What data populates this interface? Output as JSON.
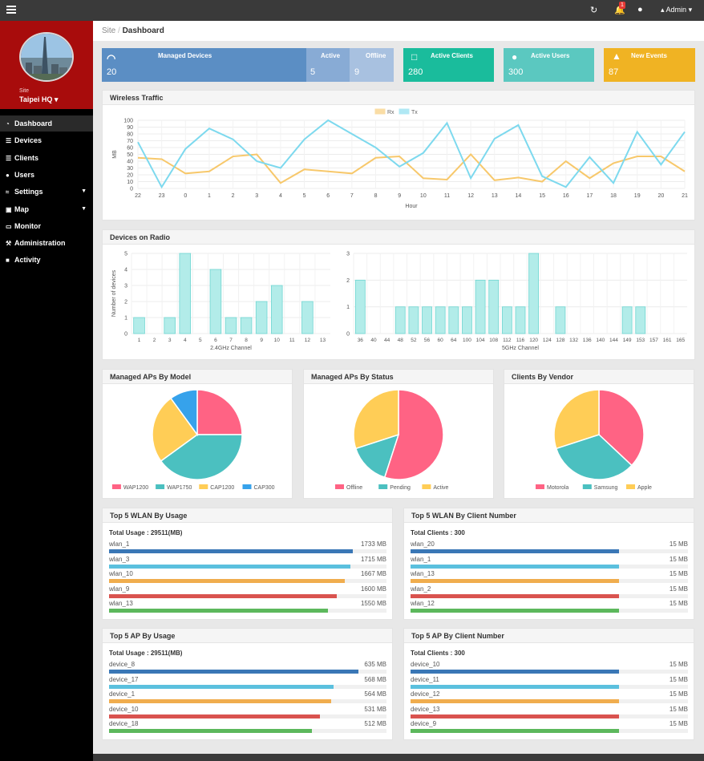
{
  "topbar": {
    "bell_badge": "1",
    "admin_label": "Admin"
  },
  "site": {
    "label": "Site",
    "name": "Taipei HQ"
  },
  "nav": [
    {
      "label": "Dashboard",
      "icon": "dashboard-icon"
    },
    {
      "label": "Devices",
      "icon": "devices-icon"
    },
    {
      "label": "Clients",
      "icon": "clients-icon"
    },
    {
      "label": "Users",
      "icon": "users-icon"
    },
    {
      "label": "Settings",
      "icon": "settings-icon"
    },
    {
      "label": "Map",
      "icon": "map-icon"
    },
    {
      "label": "Monitor",
      "icon": "monitor-icon"
    },
    {
      "label": "Administration",
      "icon": "wrench-icon"
    },
    {
      "label": "Activity",
      "icon": "file-icon"
    }
  ],
  "breadcrumb": {
    "root": "Site",
    "sep": "/",
    "current": "Dashboard"
  },
  "tiles": {
    "managed": {
      "label": "Managed Devices",
      "value": "20",
      "active_label": "Active",
      "active_value": "5",
      "offline_label": "Offline",
      "offline_value": "9"
    },
    "clients": {
      "label": "Active Clients",
      "value": "280"
    },
    "users": {
      "label": "Active Users",
      "value": "300"
    },
    "events": {
      "label": "New Events",
      "value": "87"
    }
  },
  "colors": {
    "managed": "#5b8ec4",
    "managed_active": "#88abd5",
    "managed_offline": "#a8c1e0",
    "clients": "#1abc9c",
    "users": "#5bc8c0",
    "events": "#f0b323",
    "rx": "#f7c86b",
    "tx": "#7dd9ee",
    "bars": "#b2ece9"
  },
  "wireless": {
    "title": "Wireless Traffic"
  },
  "radio": {
    "title": "Devices on Radio"
  },
  "pies": {
    "model_title": "Managed APs By Model",
    "status_title": "Managed APs By Status",
    "vendor_title": "Clients By Vendor"
  },
  "wlan_usage": {
    "title": "Top 5 WLAN By Usage",
    "total_label": "Total Usage : 29511(MB)",
    "rows": [
      {
        "name": "wlan_1",
        "value": "1733 MB",
        "frac": 0.88,
        "color": "#3a77b6"
      },
      {
        "name": "wlan_3",
        "value": "1715 MB",
        "frac": 0.87,
        "color": "#5bc0de"
      },
      {
        "name": "wlan_10",
        "value": "1667 MB",
        "frac": 0.85,
        "color": "#f0ad4e"
      },
      {
        "name": "wlan_9",
        "value": "1600 MB",
        "frac": 0.82,
        "color": "#d9534f"
      },
      {
        "name": "wlan_13",
        "value": "1550 MB",
        "frac": 0.79,
        "color": "#5cb85c"
      }
    ]
  },
  "wlan_clients": {
    "title": "Top 5 WLAN By Client Number",
    "total_label": "Total Clients : 300",
    "rows": [
      {
        "name": "wlan_20",
        "value": "15 MB",
        "frac": 0.75,
        "color": "#3a77b6"
      },
      {
        "name": "wlan_1",
        "value": "15 MB",
        "frac": 0.75,
        "color": "#5bc0de"
      },
      {
        "name": "wlan_13",
        "value": "15 MB",
        "frac": 0.75,
        "color": "#f0ad4e"
      },
      {
        "name": "wlan_2",
        "value": "15 MB",
        "frac": 0.75,
        "color": "#d9534f"
      },
      {
        "name": "wlan_12",
        "value": "15 MB",
        "frac": 0.75,
        "color": "#5cb85c"
      }
    ]
  },
  "ap_usage": {
    "title": "Top 5 AP By Usage",
    "total_label": "Total Usage : 29511(MB)",
    "rows": [
      {
        "name": "device_8",
        "value": "635 MB",
        "frac": 0.9,
        "color": "#3a77b6"
      },
      {
        "name": "device_17",
        "value": "568 MB",
        "frac": 0.81,
        "color": "#5bc0de"
      },
      {
        "name": "device_1",
        "value": "564 MB",
        "frac": 0.8,
        "color": "#f0ad4e"
      },
      {
        "name": "device_10",
        "value": "531 MB",
        "frac": 0.76,
        "color": "#d9534f"
      },
      {
        "name": "device_18",
        "value": "512 MB",
        "frac": 0.73,
        "color": "#5cb85c"
      }
    ]
  },
  "ap_clients": {
    "title": "Top 5 AP By Client Number",
    "total_label": "Total Clients : 300",
    "rows": [
      {
        "name": "device_10",
        "value": "15 MB",
        "frac": 0.75,
        "color": "#3a77b6"
      },
      {
        "name": "device_11",
        "value": "15 MB",
        "frac": 0.75,
        "color": "#5bc0de"
      },
      {
        "name": "device_12",
        "value": "15 MB",
        "frac": 0.75,
        "color": "#f0ad4e"
      },
      {
        "name": "device_13",
        "value": "15 MB",
        "frac": 0.75,
        "color": "#d9534f"
      },
      {
        "name": "device_9",
        "value": "15 MB",
        "frac": 0.75,
        "color": "#5cb85c"
      }
    ]
  },
  "chart_data": [
    {
      "type": "line",
      "title": "",
      "xlabel": "Hour",
      "ylabel": "MB",
      "ylim": [
        0,
        100
      ],
      "yticks": [
        0,
        10,
        20,
        30,
        40,
        50,
        60,
        70,
        80,
        90,
        100
      ],
      "categories": [
        "22",
        "23",
        "0",
        "1",
        "2",
        "3",
        "4",
        "5",
        "6",
        "7",
        "8",
        "9",
        "10",
        "11",
        "12",
        "13",
        "14",
        "15",
        "16",
        "17",
        "18",
        "19",
        "20",
        "21"
      ],
      "series": [
        {
          "name": "Rx",
          "color": "#f7c86b",
          "values": [
            45,
            43,
            22,
            25,
            47,
            50,
            8,
            28,
            25,
            22,
            45,
            47,
            15,
            13,
            50,
            12,
            16,
            10,
            40,
            15,
            37,
            47,
            47,
            25
          ]
        },
        {
          "name": "Tx",
          "color": "#7dd9ee",
          "values": [
            68,
            2,
            58,
            88,
            72,
            40,
            30,
            72,
            100,
            80,
            60,
            32,
            52,
            96,
            15,
            73,
            93,
            18,
            2,
            46,
            8,
            83,
            35,
            83
          ]
        }
      ],
      "grid": true,
      "legend": "top"
    },
    {
      "type": "bar",
      "title": "",
      "xlabel": "2.4GHz Channel",
      "ylabel": "Number of devices",
      "ylim": [
        0,
        5
      ],
      "yticks": [
        0,
        1,
        2,
        3,
        4,
        5
      ],
      "categories": [
        "1",
        "2",
        "3",
        "4",
        "5",
        "6",
        "7",
        "8",
        "9",
        "10",
        "11",
        "12",
        "13"
      ],
      "values": [
        1,
        0,
        1,
        5,
        0,
        4,
        1,
        1,
        2,
        3,
        0,
        2,
        0
      ]
    },
    {
      "type": "bar",
      "title": "",
      "xlabel": "5GHz Channel",
      "ylabel": "",
      "ylim": [
        0,
        3
      ],
      "yticks": [
        0,
        1,
        2,
        3
      ],
      "categories": [
        "36",
        "40",
        "44",
        "48",
        "52",
        "56",
        "60",
        "64",
        "100",
        "104",
        "108",
        "112",
        "116",
        "120",
        "124",
        "128",
        "132",
        "136",
        "140",
        "144",
        "149",
        "153",
        "157",
        "161",
        "165"
      ],
      "values": [
        2,
        0,
        0,
        1,
        1,
        1,
        1,
        1,
        1,
        2,
        2,
        1,
        1,
        3,
        0,
        1,
        0,
        0,
        0,
        0,
        1,
        1,
        0,
        0,
        0
      ]
    },
    {
      "type": "pie",
      "title": "Managed APs By Model",
      "labels": [
        "WAP1200",
        "WAP1750",
        "CAP1200",
        "CAP300"
      ],
      "values": [
        25,
        40,
        25,
        10
      ],
      "colors": [
        "#ff6384",
        "#4bc0c0",
        "#ffcd56",
        "#36a2eb"
      ]
    },
    {
      "type": "pie",
      "title": "Managed APs By Status",
      "labels": [
        "Offline",
        "Pending",
        "Active"
      ],
      "values": [
        55,
        15,
        30
      ],
      "colors": [
        "#ff6384",
        "#4bc0c0",
        "#ffcd56"
      ]
    },
    {
      "type": "pie",
      "title": "Clients By Vendor",
      "labels": [
        "Motorola",
        "Samsung",
        "Apple"
      ],
      "values": [
        37,
        33,
        30
      ],
      "colors": [
        "#ff6384",
        "#4bc0c0",
        "#ffcd56"
      ]
    }
  ]
}
